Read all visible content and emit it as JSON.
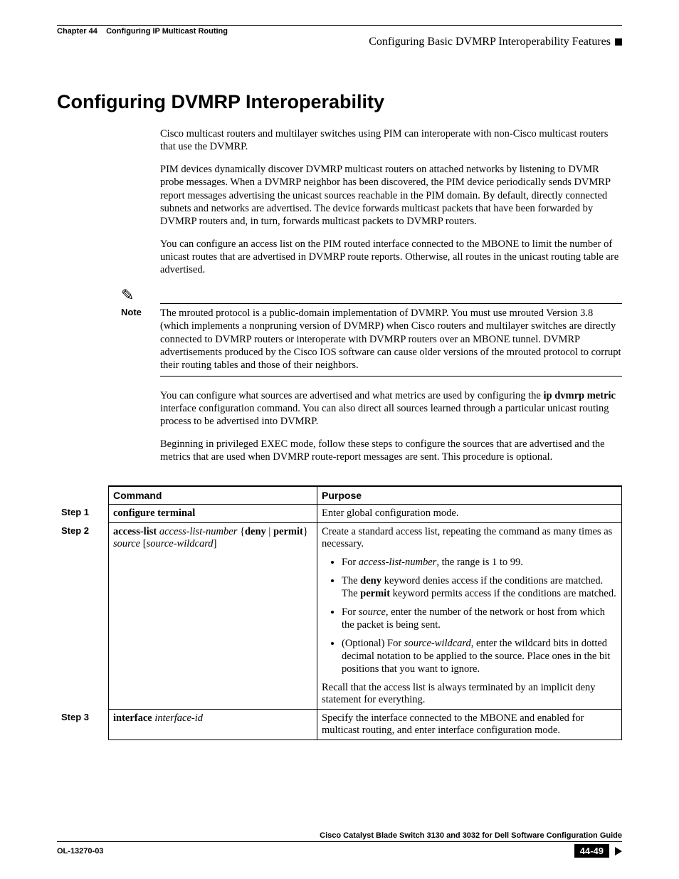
{
  "header": {
    "chapter_label": "Chapter 44",
    "chapter_title": "Configuring IP Multicast Routing",
    "right_title": "Configuring Basic DVMRP Interoperability Features"
  },
  "section_title": "Configuring DVMRP Interoperability",
  "paragraphs": {
    "p1": "Cisco multicast routers and multilayer switches using PIM can interoperate with non-Cisco multicast routers that use the DVMRP.",
    "p2": "PIM devices dynamically discover DVMRP multicast routers on attached networks by listening to DVMR probe messages. When a DVMRP neighbor has been discovered, the PIM device periodically sends DVMRP report messages advertising the unicast sources reachable in the PIM domain. By default, directly connected subnets and networks are advertised. The device forwards multicast packets that have been forwarded by DVMRP routers and, in turn, forwards multicast packets to DVMRP routers.",
    "p3": "You can configure an access list on the PIM routed interface connected to the MBONE to limit the number of unicast routes that are advertised in DVMRP route reports. Otherwise, all routes in the unicast routing table are advertised.",
    "note": "The mrouted protocol is a public-domain implementation of DVMRP. You must use mrouted Version 3.8 (which implements a nonpruning version of DVMRP) when Cisco routers and multilayer switches are directly connected to DVMRP routers or interoperate with DVMRP routers over an MBONE tunnel. DVMRP advertisements produced by the Cisco IOS software can cause older versions of the mrouted protocol to corrupt their routing tables and those of their neighbors.",
    "p4_pre": "You can configure what sources are advertised and what metrics are used by configuring the ",
    "p4_bold": "ip dvmrp metric",
    "p4_post": " interface configuration command. You can also direct all sources learned through a particular unicast routing process to be advertised into DVMRP.",
    "p5": "Beginning in privileged EXEC mode, follow these steps to configure the sources that are advertised and the metrics that are used when DVMRP route-report messages are sent. This procedure is optional."
  },
  "note_label": "Note",
  "table": {
    "headers": {
      "command": "Command",
      "purpose": "Purpose"
    },
    "steps": {
      "s1": "Step 1",
      "s2": "Step 2",
      "s3": "Step 3"
    },
    "row1": {
      "cmd": "configure terminal",
      "purpose": "Enter global configuration mode."
    },
    "row2": {
      "cmd_b1": "access-list",
      "cmd_i1": "access-list-number",
      "cmd_b2": "deny",
      "cmd_b3": "permit",
      "cmd_i2": "source",
      "cmd_i3": "source-wildcard",
      "purpose_intro": "Create a standard access list, repeating the command as many times as necessary.",
      "b1_pre": "For ",
      "b1_i": "access-list-number",
      "b1_post": ", the range is 1 to 99.",
      "b2_pre": "The ",
      "b2_bold1": "deny",
      "b2_mid": " keyword denies access if the conditions are matched. The ",
      "b2_bold2": "permit",
      "b2_post": " keyword permits access if the conditions are matched.",
      "b3_pre": "For ",
      "b3_i": "source",
      "b3_post": ", enter the number of the network or host from which the packet is being sent.",
      "b4_pre": "(Optional) For ",
      "b4_i": "source-wildcard",
      "b4_post": ", enter the wildcard bits in dotted decimal notation to be applied to the source. Place ones in the bit positions that you want to ignore.",
      "recall": "Recall that the access list is always terminated by an implicit deny statement for everything."
    },
    "row3": {
      "cmd_b": "interface",
      "cmd_i": "interface-id",
      "purpose": "Specify the interface connected to the MBONE and enabled for multicast routing, and enter interface configuration mode."
    }
  },
  "footer": {
    "book_title": "Cisco Catalyst Blade Switch 3130 and 3032 for Dell Software Configuration Guide",
    "doc_id": "OL-13270-03",
    "page_num": "44-49"
  }
}
